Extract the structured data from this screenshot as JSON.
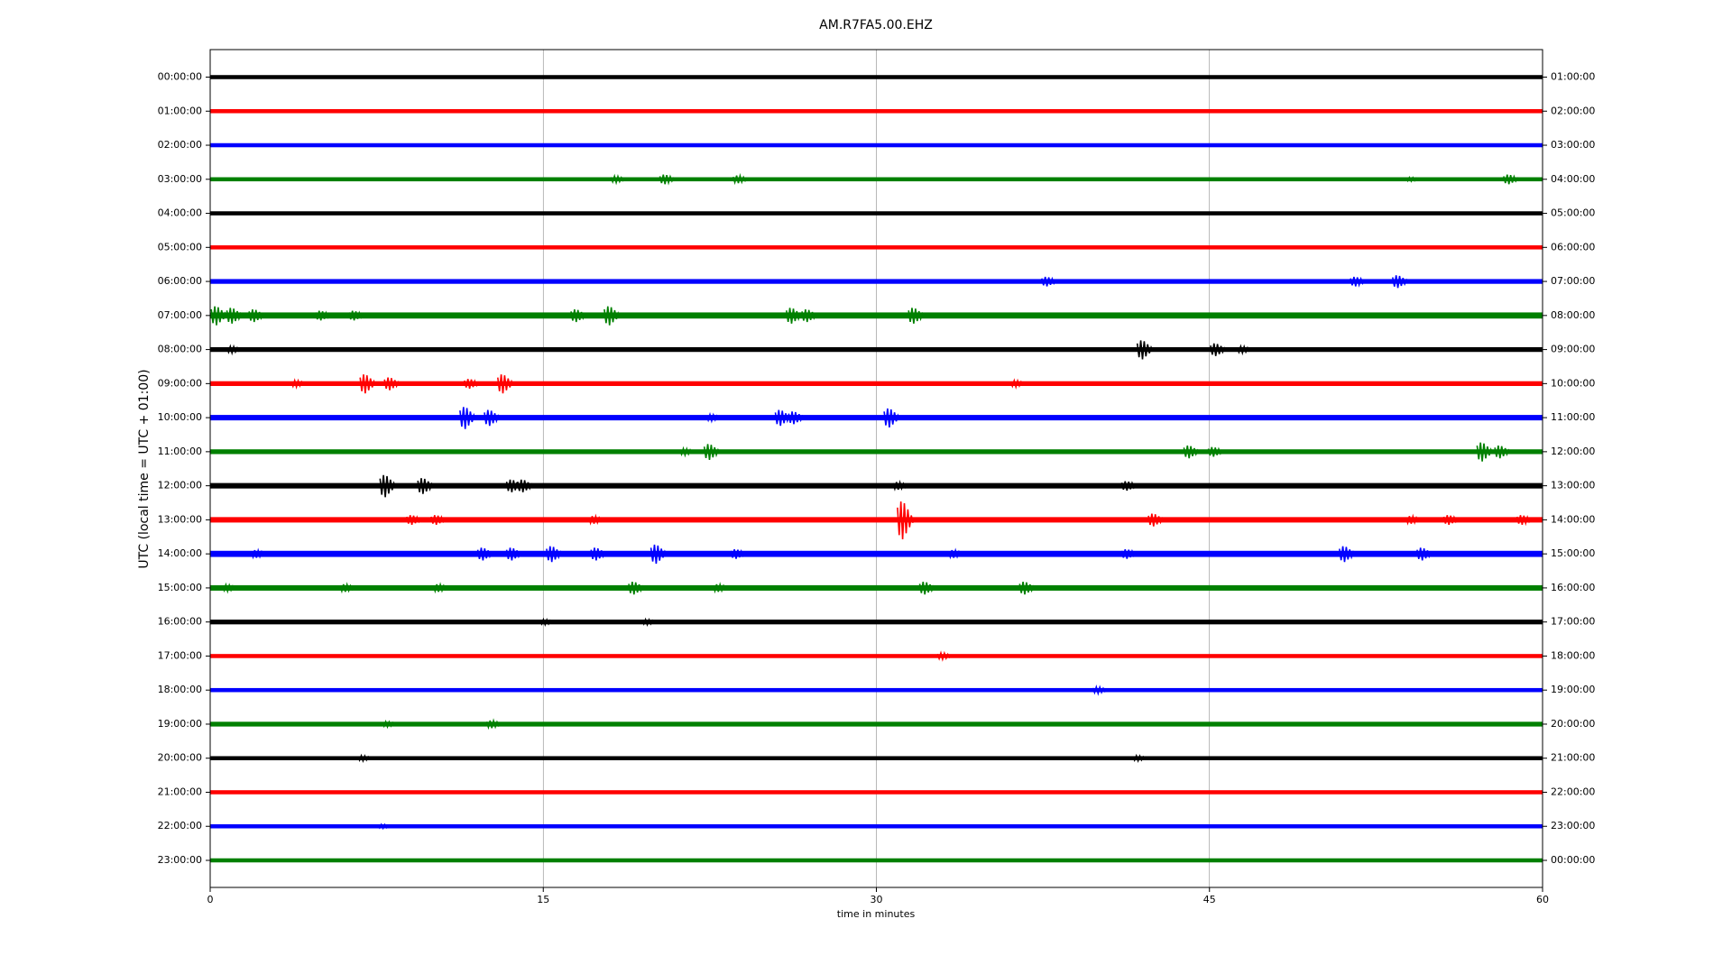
{
  "chart_data": {
    "type": "helicorder",
    "title": "AM.R7FA5.00.EHZ",
    "xlabel": "time in minutes",
    "ylabel": "UTC (local time = UTC + 01:00)",
    "xlim": [
      0,
      60
    ],
    "xticks": [
      0,
      15,
      30,
      45,
      60
    ],
    "grid": true,
    "rows": [
      {
        "label": "00:00:00",
        "right_label": "01:00:00",
        "color": "#000000",
        "noise": 0.06,
        "bursts": []
      },
      {
        "label": "01:00:00",
        "right_label": "02:00:00",
        "color": "#ff0000",
        "noise": 0.06,
        "bursts": []
      },
      {
        "label": "02:00:00",
        "right_label": "03:00:00",
        "color": "#0000ff",
        "noise": 0.06,
        "bursts": []
      },
      {
        "label": "03:00:00",
        "right_label": "04:00:00",
        "color": "#008000",
        "noise": 0.06,
        "bursts": [
          {
            "x": 18.4,
            "amp": 0.1
          },
          {
            "x": 20.6,
            "amp": 0.15
          },
          {
            "x": 23.9,
            "amp": 0.12
          },
          {
            "x": 54.2,
            "amp": 0.06
          },
          {
            "x": 58.6,
            "amp": 0.15
          }
        ]
      },
      {
        "label": "04:00:00",
        "right_label": "05:00:00",
        "color": "#000000",
        "noise": 0.06,
        "bursts": []
      },
      {
        "label": "05:00:00",
        "right_label": "06:00:00",
        "color": "#ff0000",
        "noise": 0.06,
        "bursts": []
      },
      {
        "label": "06:00:00",
        "right_label": "07:00:00",
        "color": "#0000ff",
        "noise": 0.07,
        "bursts": [
          {
            "x": 37.8,
            "amp": 0.15
          },
          {
            "x": 51.7,
            "amp": 0.15
          },
          {
            "x": 53.6,
            "amp": 0.2
          }
        ]
      },
      {
        "label": "07:00:00",
        "right_label": "08:00:00",
        "color": "#008000",
        "noise": 0.09,
        "bursts": [
          {
            "x": 0.4,
            "amp": 0.3
          },
          {
            "x": 1.1,
            "amp": 0.25
          },
          {
            "x": 2.1,
            "amp": 0.2
          },
          {
            "x": 5.1,
            "amp": 0.15
          },
          {
            "x": 6.6,
            "amp": 0.15
          },
          {
            "x": 16.6,
            "amp": 0.2
          },
          {
            "x": 18.1,
            "amp": 0.3
          },
          {
            "x": 26.3,
            "amp": 0.25
          },
          {
            "x": 27.0,
            "amp": 0.2
          },
          {
            "x": 31.8,
            "amp": 0.25
          }
        ]
      },
      {
        "label": "08:00:00",
        "right_label": "09:00:00",
        "color": "#000000",
        "noise": 0.07,
        "bursts": [
          {
            "x": 1.1,
            "amp": 0.1
          },
          {
            "x": 42.1,
            "amp": 0.3
          },
          {
            "x": 45.4,
            "amp": 0.2
          },
          {
            "x": 46.6,
            "amp": 0.1
          }
        ]
      },
      {
        "label": "09:00:00",
        "right_label": "10:00:00",
        "color": "#ff0000",
        "noise": 0.07,
        "bursts": [
          {
            "x": 4.0,
            "amp": 0.1
          },
          {
            "x": 7.1,
            "amp": 0.3
          },
          {
            "x": 8.2,
            "amp": 0.2
          },
          {
            "x": 11.8,
            "amp": 0.15
          },
          {
            "x": 13.3,
            "amp": 0.3
          },
          {
            "x": 36.4,
            "amp": 0.1
          }
        ]
      },
      {
        "label": "10:00:00",
        "right_label": "11:00:00",
        "color": "#0000ff",
        "noise": 0.08,
        "bursts": [
          {
            "x": 11.6,
            "amp": 0.35
          },
          {
            "x": 12.7,
            "amp": 0.25
          },
          {
            "x": 22.7,
            "amp": 0.1
          },
          {
            "x": 25.8,
            "amp": 0.25
          },
          {
            "x": 26.4,
            "amp": 0.2
          },
          {
            "x": 30.7,
            "amp": 0.3
          }
        ]
      },
      {
        "label": "11:00:00",
        "right_label": "12:00:00",
        "color": "#008000",
        "noise": 0.07,
        "bursts": [
          {
            "x": 21.5,
            "amp": 0.1
          },
          {
            "x": 22.6,
            "amp": 0.25
          },
          {
            "x": 44.2,
            "amp": 0.2
          },
          {
            "x": 45.3,
            "amp": 0.15
          },
          {
            "x": 57.4,
            "amp": 0.3
          },
          {
            "x": 58.2,
            "amp": 0.2
          }
        ]
      },
      {
        "label": "12:00:00",
        "right_label": "13:00:00",
        "color": "#000000",
        "noise": 0.08,
        "bursts": [
          {
            "x": 8.0,
            "amp": 0.35
          },
          {
            "x": 9.7,
            "amp": 0.25
          },
          {
            "x": 13.7,
            "amp": 0.2
          },
          {
            "x": 14.2,
            "amp": 0.2
          },
          {
            "x": 31.1,
            "amp": 0.12
          },
          {
            "x": 41.4,
            "amp": 0.15
          }
        ]
      },
      {
        "label": "13:00:00",
        "right_label": "14:00:00",
        "color": "#ff0000",
        "noise": 0.08,
        "bursts": [
          {
            "x": 9.2,
            "amp": 0.15
          },
          {
            "x": 10.3,
            "amp": 0.15
          },
          {
            "x": 17.4,
            "amp": 0.12
          },
          {
            "x": 31.3,
            "amp": 0.6
          },
          {
            "x": 42.6,
            "amp": 0.2
          },
          {
            "x": 54.2,
            "amp": 0.12
          },
          {
            "x": 55.9,
            "amp": 0.15
          },
          {
            "x": 59.2,
            "amp": 0.15
          }
        ]
      },
      {
        "label": "14:00:00",
        "right_label": "15:00:00",
        "color": "#0000ff",
        "noise": 0.09,
        "bursts": [
          {
            "x": 2.2,
            "amp": 0.12
          },
          {
            "x": 12.4,
            "amp": 0.2
          },
          {
            "x": 13.7,
            "amp": 0.2
          },
          {
            "x": 15.5,
            "amp": 0.25
          },
          {
            "x": 17.5,
            "amp": 0.2
          },
          {
            "x": 20.2,
            "amp": 0.3
          },
          {
            "x": 23.8,
            "amp": 0.15
          },
          {
            "x": 33.6,
            "amp": 0.12
          },
          {
            "x": 41.4,
            "amp": 0.15
          },
          {
            "x": 51.2,
            "amp": 0.25
          },
          {
            "x": 54.7,
            "amp": 0.2
          }
        ]
      },
      {
        "label": "15:00:00",
        "right_label": "16:00:00",
        "color": "#008000",
        "noise": 0.08,
        "bursts": [
          {
            "x": 0.9,
            "amp": 0.1
          },
          {
            "x": 6.2,
            "amp": 0.12
          },
          {
            "x": 10.4,
            "amp": 0.12
          },
          {
            "x": 19.2,
            "amp": 0.2
          },
          {
            "x": 23.0,
            "amp": 0.12
          },
          {
            "x": 32.3,
            "amp": 0.2
          },
          {
            "x": 36.8,
            "amp": 0.2
          }
        ]
      },
      {
        "label": "16:00:00",
        "right_label": "17:00:00",
        "color": "#000000",
        "noise": 0.07,
        "bursts": [
          {
            "x": 15.2,
            "amp": 0.08
          },
          {
            "x": 19.8,
            "amp": 0.08
          }
        ]
      },
      {
        "label": "17:00:00",
        "right_label": "18:00:00",
        "color": "#ff0000",
        "noise": 0.06,
        "bursts": [
          {
            "x": 33.1,
            "amp": 0.1
          }
        ]
      },
      {
        "label": "18:00:00",
        "right_label": "19:00:00",
        "color": "#0000ff",
        "noise": 0.06,
        "bursts": [
          {
            "x": 40.1,
            "amp": 0.1
          }
        ]
      },
      {
        "label": "19:00:00",
        "right_label": "20:00:00",
        "color": "#008000",
        "noise": 0.07,
        "bursts": [
          {
            "x": 8.1,
            "amp": 0.08
          },
          {
            "x": 12.8,
            "amp": 0.12
          }
        ]
      },
      {
        "label": "20:00:00",
        "right_label": "21:00:00",
        "color": "#000000",
        "noise": 0.06,
        "bursts": [
          {
            "x": 7.0,
            "amp": 0.08
          },
          {
            "x": 41.9,
            "amp": 0.08
          }
        ]
      },
      {
        "label": "21:00:00",
        "right_label": "22:00:00",
        "color": "#ff0000",
        "noise": 0.06,
        "bursts": []
      },
      {
        "label": "22:00:00",
        "right_label": "23:00:00",
        "color": "#0000ff",
        "noise": 0.06,
        "bursts": [
          {
            "x": 7.9,
            "amp": 0.06
          }
        ]
      },
      {
        "label": "23:00:00",
        "right_label": "00:00:00",
        "color": "#008000",
        "noise": 0.06,
        "bursts": []
      }
    ]
  }
}
